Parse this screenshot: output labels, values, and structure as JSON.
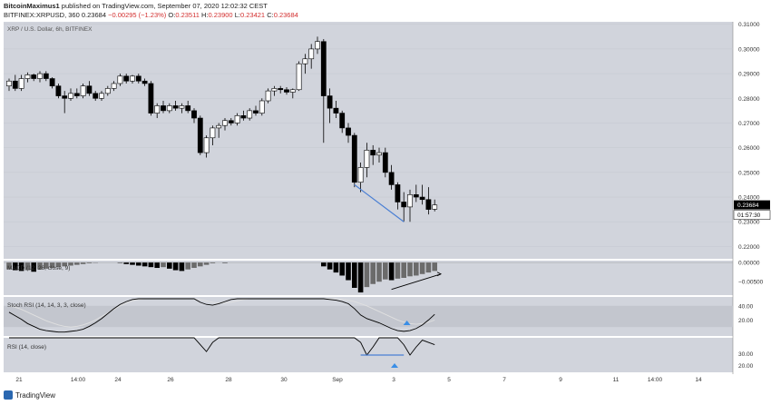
{
  "header": {
    "author": "BitcoinMaximus1",
    "published": "published on TradingView.com, September 07, 2020 12:02:32 CEST",
    "symbol": "BITFINEX:XRPUSD, 360",
    "last": "0.23684",
    "change": "−0.00295 (−1.23%)",
    "open_label": "O:",
    "open": "0.23511",
    "high_label": "H:",
    "high": "0.23900",
    "low_label": "L:",
    "low": "0.23421",
    "close_label": "C:",
    "close": "0.23684"
  },
  "colors": {
    "pane_bg": "#d1d4dc",
    "up": "#ffffff",
    "down": "#000000",
    "trendline": "#4a7fd4",
    "stoch_k": "#000000",
    "stoch_d": "#e0e0e0",
    "arrow": "#3a8ee6"
  },
  "chart_data": {
    "type": "candlestick",
    "title": "XRP / U.S. Dollar, 6h, BITFINEX",
    "price_axis": {
      "min": 0.215,
      "max": 0.311,
      "ticks": [
        "0.31000",
        "0.30000",
        "0.29000",
        "0.28000",
        "0.27000",
        "0.26000",
        "0.25000",
        "0.24000",
        "0.23000",
        "0.22000"
      ]
    },
    "last_price_label": "0.23684",
    "countdown_label": "01:57:30",
    "x_axis_labels": [
      "21",
      "14:00",
      "24",
      "26",
      "28",
      "30",
      "Sep",
      "3",
      "5",
      "7",
      "9",
      "11",
      "14:00",
      "14"
    ],
    "candles": [
      [
        0.285,
        0.288,
        0.283,
        0.287
      ],
      [
        0.287,
        0.2895,
        0.283,
        0.284
      ],
      [
        0.284,
        0.2895,
        0.283,
        0.288
      ],
      [
        0.288,
        0.2905,
        0.2865,
        0.2895
      ],
      [
        0.2895,
        0.29,
        0.287,
        0.288
      ],
      [
        0.288,
        0.291,
        0.2865,
        0.29
      ],
      [
        0.29,
        0.291,
        0.287,
        0.288
      ],
      [
        0.288,
        0.2885,
        0.284,
        0.285
      ],
      [
        0.285,
        0.286,
        0.28,
        0.281
      ],
      [
        0.281,
        0.283,
        0.274,
        0.28
      ],
      [
        0.28,
        0.284,
        0.279,
        0.282
      ],
      [
        0.282,
        0.284,
        0.28,
        0.281
      ],
      [
        0.281,
        0.286,
        0.28,
        0.285
      ],
      [
        0.285,
        0.287,
        0.281,
        0.282
      ],
      [
        0.282,
        0.283,
        0.279,
        0.28
      ],
      [
        0.28,
        0.283,
        0.279,
        0.282
      ],
      [
        0.282,
        0.285,
        0.281,
        0.284
      ],
      [
        0.284,
        0.287,
        0.283,
        0.286
      ],
      [
        0.286,
        0.29,
        0.285,
        0.289
      ],
      [
        0.289,
        0.29,
        0.286,
        0.287
      ],
      [
        0.287,
        0.2895,
        0.286,
        0.289
      ],
      [
        0.289,
        0.29,
        0.286,
        0.287
      ],
      [
        0.287,
        0.288,
        0.285,
        0.286
      ],
      [
        0.286,
        0.287,
        0.273,
        0.274
      ],
      [
        0.274,
        0.278,
        0.272,
        0.277
      ],
      [
        0.277,
        0.279,
        0.274,
        0.275
      ],
      [
        0.275,
        0.278,
        0.274,
        0.277
      ],
      [
        0.277,
        0.279,
        0.275,
        0.276
      ],
      [
        0.276,
        0.278,
        0.274,
        0.277
      ],
      [
        0.277,
        0.279,
        0.274,
        0.275
      ],
      [
        0.275,
        0.276,
        0.27,
        0.272
      ],
      [
        0.272,
        0.273,
        0.257,
        0.258
      ],
      [
        0.258,
        0.265,
        0.256,
        0.264
      ],
      [
        0.264,
        0.269,
        0.261,
        0.268
      ],
      [
        0.268,
        0.27,
        0.264,
        0.269
      ],
      [
        0.269,
        0.272,
        0.267,
        0.271
      ],
      [
        0.271,
        0.272,
        0.269,
        0.27
      ],
      [
        0.27,
        0.274,
        0.269,
        0.273
      ],
      [
        0.273,
        0.275,
        0.271,
        0.272
      ],
      [
        0.272,
        0.276,
        0.271,
        0.275
      ],
      [
        0.275,
        0.277,
        0.273,
        0.274
      ],
      [
        0.274,
        0.28,
        0.273,
        0.279
      ],
      [
        0.279,
        0.284,
        0.278,
        0.283
      ],
      [
        0.283,
        0.285,
        0.281,
        0.284
      ],
      [
        0.284,
        0.285,
        0.282,
        0.2835
      ],
      [
        0.2835,
        0.2845,
        0.2815,
        0.2825
      ],
      [
        0.2825,
        0.284,
        0.28,
        0.2835
      ],
      [
        0.2835,
        0.295,
        0.283,
        0.294
      ],
      [
        0.294,
        0.298,
        0.29,
        0.296
      ],
      [
        0.296,
        0.302,
        0.292,
        0.3
      ],
      [
        0.3,
        0.305,
        0.298,
        0.303
      ],
      [
        0.303,
        0.304,
        0.262,
        0.281
      ],
      [
        0.281,
        0.284,
        0.27,
        0.276
      ],
      [
        0.276,
        0.279,
        0.272,
        0.274
      ],
      [
        0.274,
        0.275,
        0.266,
        0.268
      ],
      [
        0.268,
        0.27,
        0.262,
        0.265
      ],
      [
        0.265,
        0.266,
        0.244,
        0.246
      ],
      [
        0.246,
        0.254,
        0.242,
        0.252
      ],
      [
        0.252,
        0.262,
        0.248,
        0.259
      ],
      [
        0.259,
        0.261,
        0.253,
        0.257
      ],
      [
        0.257,
        0.26,
        0.254,
        0.258
      ],
      [
        0.258,
        0.26,
        0.248,
        0.25
      ],
      [
        0.25,
        0.253,
        0.243,
        0.245
      ],
      [
        0.245,
        0.246,
        0.235,
        0.238
      ],
      [
        0.238,
        0.242,
        0.23,
        0.236
      ],
      [
        0.236,
        0.243,
        0.23,
        0.241
      ],
      [
        0.241,
        0.245,
        0.238,
        0.24
      ],
      [
        0.24,
        0.245,
        0.237,
        0.239
      ],
      [
        0.239,
        0.244,
        0.233,
        0.235
      ],
      [
        0.2351,
        0.239,
        0.2342,
        0.2368
      ]
    ],
    "trendlines": [
      {
        "from": [
          56,
          0.245
        ],
        "to": [
          64,
          0.23
        ]
      }
    ],
    "macd": {
      "label": "MACD (12, 26, close, 9)",
      "axis_ticks": [
        "0.00000",
        "−0.00500"
      ],
      "axis_range": [
        -0.0085,
        0.0005
      ],
      "histogram": [
        -0.0018,
        -0.002,
        -0.0022,
        -0.002,
        -0.0024,
        -0.0018,
        -0.0016,
        -0.0014,
        -0.0012,
        -0.001,
        -0.0008,
        -0.0006,
        -0.0004,
        -0.0002,
        -0.0001,
        0.0,
        0.0,
        0.0,
        -0.0001,
        -0.0004,
        -0.0006,
        -0.0008,
        -0.001,
        -0.0012,
        -0.0014,
        -0.0012,
        -0.0016,
        -0.002,
        -0.0022,
        -0.0018,
        -0.0014,
        -0.001,
        -0.0006,
        -0.0002,
        0.0,
        -0.0001,
        0.0,
        0.0,
        0.0,
        0.0,
        0.0,
        0.0,
        0.0,
        0.0,
        0.0,
        0.0,
        0.0,
        0.0,
        0.0,
        0.0,
        0.0,
        -0.001,
        -0.0018,
        -0.0026,
        -0.0034,
        -0.0046,
        -0.0066,
        -0.0078,
        -0.0064,
        -0.0056,
        -0.005,
        -0.0044,
        -0.0046,
        -0.0042,
        -0.004,
        -0.0036,
        -0.0034,
        -0.003,
        -0.0026,
        -0.0022
      ],
      "trendline": {
        "from": [
          62,
          -0.007
        ],
        "to": [
          70,
          -0.003
        ]
      }
    },
    "stoch_rsi": {
      "label": "Stoch RSI (14, 14, 3, 3, close)",
      "axis_ticks": [
        "40.00",
        "20.00"
      ],
      "axis_range": [
        0,
        100
      ],
      "band": [
        20,
        80
      ],
      "k": [
        62,
        52,
        42,
        30,
        22,
        14,
        10,
        8,
        6,
        6,
        8,
        10,
        14,
        22,
        32,
        44,
        58,
        72,
        84,
        92,
        98,
        100,
        100,
        100,
        100,
        100,
        100,
        100,
        100,
        100,
        100,
        90,
        84,
        82,
        86,
        92,
        98,
        100,
        100,
        100,
        100,
        100,
        100,
        100,
        100,
        100,
        100,
        100,
        100,
        100,
        100,
        100,
        98,
        96,
        92,
        86,
        72,
        54,
        44,
        38,
        32,
        24,
        16,
        10,
        8,
        10,
        16,
        26,
        40,
        56
      ],
      "d": [
        80,
        76,
        70,
        62,
        54,
        46,
        38,
        32,
        26,
        22,
        20,
        22,
        26,
        32,
        40,
        50,
        60,
        70,
        80,
        88,
        94,
        98,
        100,
        100,
        100,
        100,
        100,
        100,
        100,
        100,
        100,
        98,
        94,
        90,
        88,
        88,
        90,
        94,
        98,
        100,
        100,
        100,
        100,
        100,
        100,
        100,
        100,
        100,
        100,
        100,
        100,
        100,
        100,
        100,
        98,
        96,
        92,
        86,
        80,
        72,
        64,
        56,
        48,
        40,
        34,
        30,
        28,
        30,
        34,
        40
      ]
    },
    "rsi": {
      "label": "RSI (14, close)",
      "axis_ticks": [
        "30.00",
        "20.00"
      ],
      "axis_range": [
        14,
        44
      ],
      "values": [
        46,
        46,
        46,
        46,
        46,
        46,
        46,
        46,
        46,
        46,
        46,
        46,
        46,
        46,
        46,
        46,
        46,
        46,
        46,
        46,
        46,
        46,
        46,
        46,
        46,
        46,
        46,
        46,
        46,
        46,
        46,
        38,
        32,
        40,
        46,
        46,
        46,
        46,
        46,
        46,
        46,
        46,
        46,
        46,
        46,
        46,
        46,
        46,
        46,
        46,
        46,
        46,
        46,
        46,
        46,
        46,
        46,
        40,
        29,
        36,
        44,
        46,
        46,
        46,
        38,
        29,
        36,
        42,
        40,
        38
      ],
      "trendline": {
        "from": [
          57,
          29
        ],
        "to": [
          64,
          29
        ]
      }
    }
  }
}
